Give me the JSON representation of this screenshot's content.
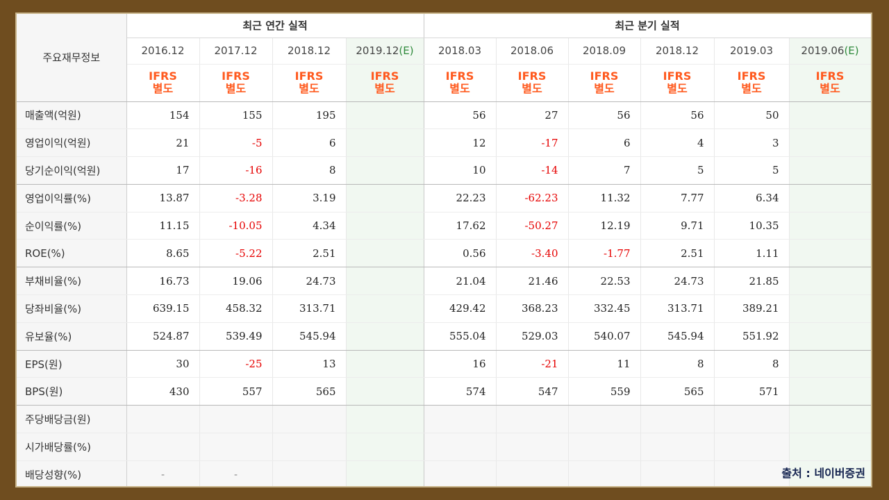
{
  "header": {
    "section_label": "주요재무정보",
    "annual_title": "최근 연간 실적",
    "quarterly_title": "최근 분기 실적",
    "accounting_line1": "IFRS",
    "accounting_line2": "별도",
    "annual_periods": [
      {
        "date": "2016.12",
        "estimate": ""
      },
      {
        "date": "2017.12",
        "estimate": ""
      },
      {
        "date": "2018.12",
        "estimate": ""
      },
      {
        "date": "2019.12",
        "estimate": "(E)"
      }
    ],
    "quarterly_periods": [
      {
        "date": "2018.03",
        "estimate": ""
      },
      {
        "date": "2018.06",
        "estimate": ""
      },
      {
        "date": "2018.09",
        "estimate": ""
      },
      {
        "date": "2018.12",
        "estimate": ""
      },
      {
        "date": "2019.03",
        "estimate": ""
      },
      {
        "date": "2019.06",
        "estimate": "(E)"
      }
    ]
  },
  "colors": {
    "negative": "#e60000",
    "ifrs": "#ff5a1f",
    "estimate_bg": "#f1f8f1",
    "estimate_mark": "#2f8a3c",
    "frame": "#6f4d1f"
  },
  "rows": [
    {
      "label": "매출액(억원)",
      "values": [
        "154",
        "155",
        "195",
        "",
        "56",
        "27",
        "56",
        "56",
        "50",
        ""
      ]
    },
    {
      "label": "영업이익(억원)",
      "values": [
        "21",
        "-5",
        "6",
        "",
        "12",
        "-17",
        "6",
        "4",
        "3",
        ""
      ]
    },
    {
      "label": "당기순이익(억원)",
      "values": [
        "17",
        "-16",
        "8",
        "",
        "10",
        "-14",
        "7",
        "5",
        "5",
        ""
      ]
    },
    {
      "label": "영업이익률(%)",
      "values": [
        "13.87",
        "-3.28",
        "3.19",
        "",
        "22.23",
        "-62.23",
        "11.32",
        "7.77",
        "6.34",
        ""
      ]
    },
    {
      "label": "순이익률(%)",
      "values": [
        "11.15",
        "-10.05",
        "4.34",
        "",
        "17.62",
        "-50.27",
        "12.19",
        "9.71",
        "10.35",
        ""
      ]
    },
    {
      "label": "ROE(%)",
      "values": [
        "8.65",
        "-5.22",
        "2.51",
        "",
        "0.56",
        "-3.40",
        "-1.77",
        "2.51",
        "1.11",
        ""
      ]
    },
    {
      "label": "부채비율(%)",
      "values": [
        "16.73",
        "19.06",
        "24.73",
        "",
        "21.04",
        "21.46",
        "22.53",
        "24.73",
        "21.85",
        ""
      ]
    },
    {
      "label": "당좌비율(%)",
      "values": [
        "639.15",
        "458.32",
        "313.71",
        "",
        "429.42",
        "368.23",
        "332.45",
        "313.71",
        "389.21",
        ""
      ]
    },
    {
      "label": "유보율(%)",
      "values": [
        "524.87",
        "539.49",
        "545.94",
        "",
        "555.04",
        "529.03",
        "540.07",
        "545.94",
        "551.92",
        ""
      ]
    },
    {
      "label": "EPS(원)",
      "values": [
        "30",
        "-25",
        "13",
        "",
        "16",
        "-21",
        "11",
        "8",
        "8",
        ""
      ]
    },
    {
      "label": "BPS(원)",
      "values": [
        "430",
        "557",
        "565",
        "",
        "574",
        "547",
        "559",
        "565",
        "571",
        ""
      ]
    },
    {
      "label": "주당배당금(원)",
      "values": [
        "",
        "",
        "",
        "",
        "",
        "",
        "",
        "",
        "",
        ""
      ]
    },
    {
      "label": "시가배당률(%)",
      "values": [
        "",
        "",
        "",
        "",
        "",
        "",
        "",
        "",
        "",
        ""
      ]
    },
    {
      "label": "배당성향(%)",
      "values": [
        "-",
        "-",
        "",
        "",
        "",
        "",
        "",
        "",
        "",
        ""
      ]
    }
  ],
  "source": "출처 : 네이버증권"
}
